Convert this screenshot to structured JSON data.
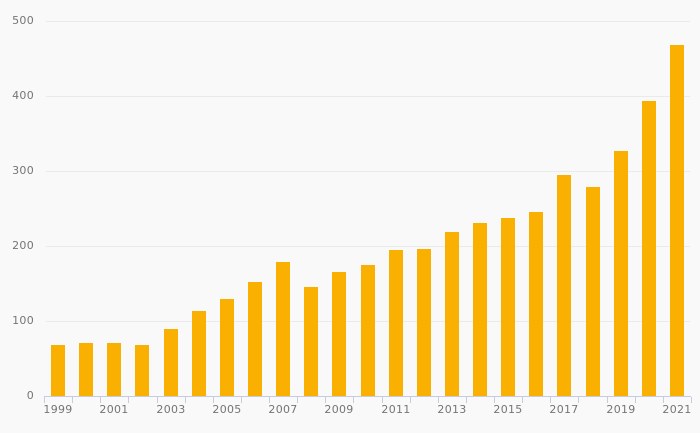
{
  "chart_data": {
    "type": "bar",
    "categories": [
      1999,
      2000,
      2001,
      2002,
      2003,
      2004,
      2005,
      2006,
      2007,
      2008,
      2009,
      2010,
      2011,
      2012,
      2013,
      2014,
      2015,
      2016,
      2017,
      2018,
      2019,
      2020,
      2021
    ],
    "values": [
      68,
      71,
      71,
      68,
      89,
      113,
      129,
      152,
      178,
      145,
      165,
      174,
      194,
      196,
      218,
      230,
      237,
      245,
      295,
      279,
      326,
      393,
      468
    ],
    "ylim": [
      0,
      500
    ],
    "ytick_step": 100,
    "yticks": [
      "0",
      "100",
      "200",
      "300",
      "400",
      "500"
    ],
    "xtick_labels": [
      "1999",
      "2001",
      "2003",
      "2005",
      "2007",
      "2009",
      "2011",
      "2013",
      "2015",
      "2017",
      "2019",
      "2021"
    ],
    "grid": "horizontal-only",
    "legend_position": "none",
    "colors": {
      "bar": "#F9B000",
      "background": "#F9F9F9",
      "gridline": "#EAEAEA",
      "axis": "#C5CCE2",
      "label_text": "#757575"
    }
  }
}
